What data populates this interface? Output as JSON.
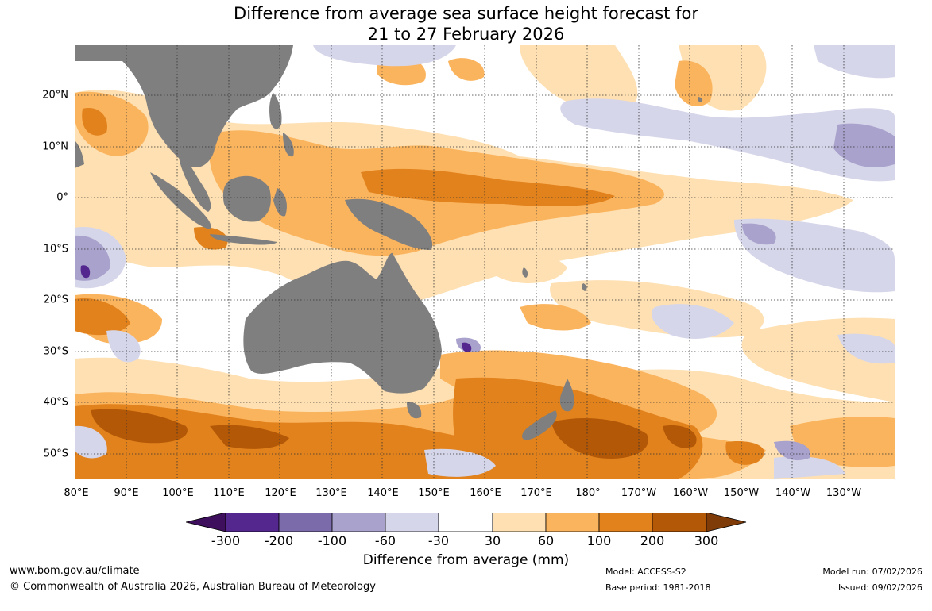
{
  "title_line1": "Difference from average sea surface height forecast for",
  "title_line2": "21 to 27 February 2026",
  "lat_labels": [
    "20°N",
    "10°N",
    "0°",
    "10°S",
    "20°S",
    "30°S",
    "40°S",
    "50°S"
  ],
  "lon_labels": [
    "80°E",
    "90°E",
    "100°E",
    "110°E",
    "120°E",
    "130°E",
    "140°E",
    "150°E",
    "160°E",
    "170°E",
    "180°",
    "170°W",
    "160°W",
    "150°W",
    "140°W",
    "130°W"
  ],
  "legend": {
    "ticks": [
      "-300",
      "-200",
      "-100",
      "-60",
      "-30",
      "30",
      "60",
      "100",
      "200",
      "300"
    ],
    "colors": [
      "#3d0f5c",
      "#54278f",
      "#7b6bab",
      "#a8a2cc",
      "#d6d6ea",
      "#ffffff",
      "#fee0b2",
      "#fbb45e",
      "#e1821d",
      "#b35806",
      "#7f3b08"
    ],
    "label": "Difference from average (mm)"
  },
  "colors": {
    "land": "#7f7f7f",
    "ocean_neutral": "#ffffff"
  },
  "footer": {
    "url": "www.bom.gov.au/climate",
    "copyright": "© Commonwealth of Australia 2026, Australian Bureau of Meteorology",
    "model": "Model: ACCESS-S2",
    "base_period": "Base period: 1981-2018",
    "model_run": "Model run: 07/02/2026",
    "issued": "Issued: 09/02/2026"
  }
}
